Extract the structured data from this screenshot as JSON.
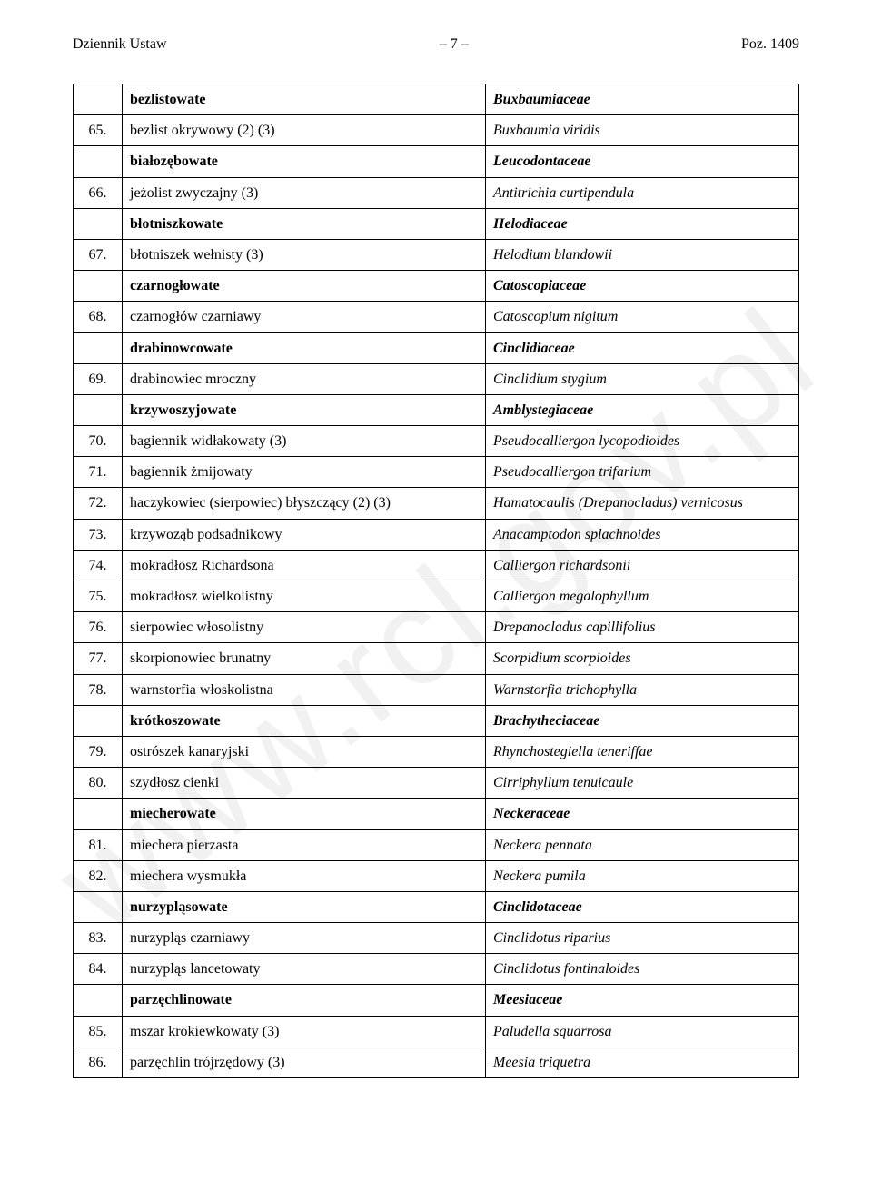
{
  "header": {
    "left": "Dziennik Ustaw",
    "center": "– 7 –",
    "right": "Poz. 1409"
  },
  "watermark": "www.rcl.gov.pl",
  "rows": [
    {
      "type": "family",
      "num": "",
      "polish": "bezlistowate",
      "latin": "Buxbaumiaceae"
    },
    {
      "type": "species",
      "num": "65.",
      "polish": "bezlist okrywowy (2) (3)",
      "latin": "Buxbaumia viridis"
    },
    {
      "type": "family",
      "num": "",
      "polish": "białozębowate",
      "latin": "Leucodontaceae"
    },
    {
      "type": "species",
      "num": "66.",
      "polish": "jeżolist zwyczajny (3)",
      "latin": "Antitrichia curtipendula"
    },
    {
      "type": "family",
      "num": "",
      "polish": "błotniszkowate",
      "latin": "Helodiaceae"
    },
    {
      "type": "species",
      "num": "67.",
      "polish": "błotniszek wełnisty (3)",
      "latin": "Helodium blandowii"
    },
    {
      "type": "family",
      "num": "",
      "polish": "czarnogłowate",
      "latin": "Catoscopiaceae"
    },
    {
      "type": "species",
      "num": "68.",
      "polish": "czarnogłów czarniawy",
      "latin": "Catoscopium nigitum"
    },
    {
      "type": "family",
      "num": "",
      "polish": "drabinowcowate",
      "latin": "Cinclidiaceae"
    },
    {
      "type": "species",
      "num": "69.",
      "polish": "drabinowiec mroczny",
      "latin": "Cinclidium stygium"
    },
    {
      "type": "family",
      "num": "",
      "polish": "krzywoszyjowate",
      "latin": "Amblystegiaceae"
    },
    {
      "type": "species",
      "num": "70.",
      "polish": "bagiennik widłakowaty (3)",
      "latin": "Pseudocalliergon lycopodioides"
    },
    {
      "type": "species",
      "num": "71.",
      "polish": "bagiennik żmijowaty",
      "latin": "Pseudocalliergon trifarium"
    },
    {
      "type": "species",
      "num": "72.",
      "polish": "haczykowiec (sierpowiec) błyszczący (2) (3)",
      "latin": "Hamatocaulis (Drepanocladus) vernicosus"
    },
    {
      "type": "species",
      "num": "73.",
      "polish": "krzywoząb podsadnikowy",
      "latin": "Anacamptodon splachnoides"
    },
    {
      "type": "species",
      "num": "74.",
      "polish": "mokradłosz Richardsona",
      "latin": "Calliergon richardsonii"
    },
    {
      "type": "species",
      "num": "75.",
      "polish": "mokradłosz wielkolistny",
      "latin": "Calliergon megalophyllum"
    },
    {
      "type": "species",
      "num": "76.",
      "polish": "sierpowiec włosolistny",
      "latin": "Drepanocladus capillifolius"
    },
    {
      "type": "species",
      "num": "77.",
      "polish": "skorpionowiec brunatny",
      "latin": "Scorpidium scorpioides"
    },
    {
      "type": "species",
      "num": "78.",
      "polish": "warnstorfia włoskolistna",
      "latin": "Warnstorfia trichophylla"
    },
    {
      "type": "family",
      "num": "",
      "polish": "krótkoszowate",
      "latin": "Brachytheciaceae"
    },
    {
      "type": "species",
      "num": "79.",
      "polish": "ostrószek kanaryjski",
      "latin": "Rhynchostegiella teneriffae"
    },
    {
      "type": "species",
      "num": "80.",
      "polish": "szydłosz cienki",
      "latin": "Cirriphyllum tenuicaule"
    },
    {
      "type": "family",
      "num": "",
      "polish": "miecherowate",
      "latin": "Neckeraceae"
    },
    {
      "type": "species",
      "num": "81.",
      "polish": "miechera pierzasta",
      "latin": "Neckera pennata"
    },
    {
      "type": "species",
      "num": "82.",
      "polish": "miechera wysmukła",
      "latin": "Neckera pumila"
    },
    {
      "type": "family",
      "num": "",
      "polish": "nurzypląsowate",
      "latin": "Cinclidotaceae"
    },
    {
      "type": "species",
      "num": "83.",
      "polish": "nurzypląs czarniawy",
      "latin": "Cinclidotus riparius"
    },
    {
      "type": "species",
      "num": "84.",
      "polish": "nurzypląs lancetowaty",
      "latin": "Cinclidotus fontinaloides"
    },
    {
      "type": "family",
      "num": "",
      "polish": "parzęchlinowate",
      "latin": "Meesiaceae"
    },
    {
      "type": "species",
      "num": "85.",
      "polish": "mszar krokiewkowaty (3)",
      "latin": "Paludella squarrosa"
    },
    {
      "type": "species",
      "num": "86.",
      "polish": "parzęchlin trójrzędowy (3)",
      "latin": "Meesia triquetra"
    }
  ]
}
